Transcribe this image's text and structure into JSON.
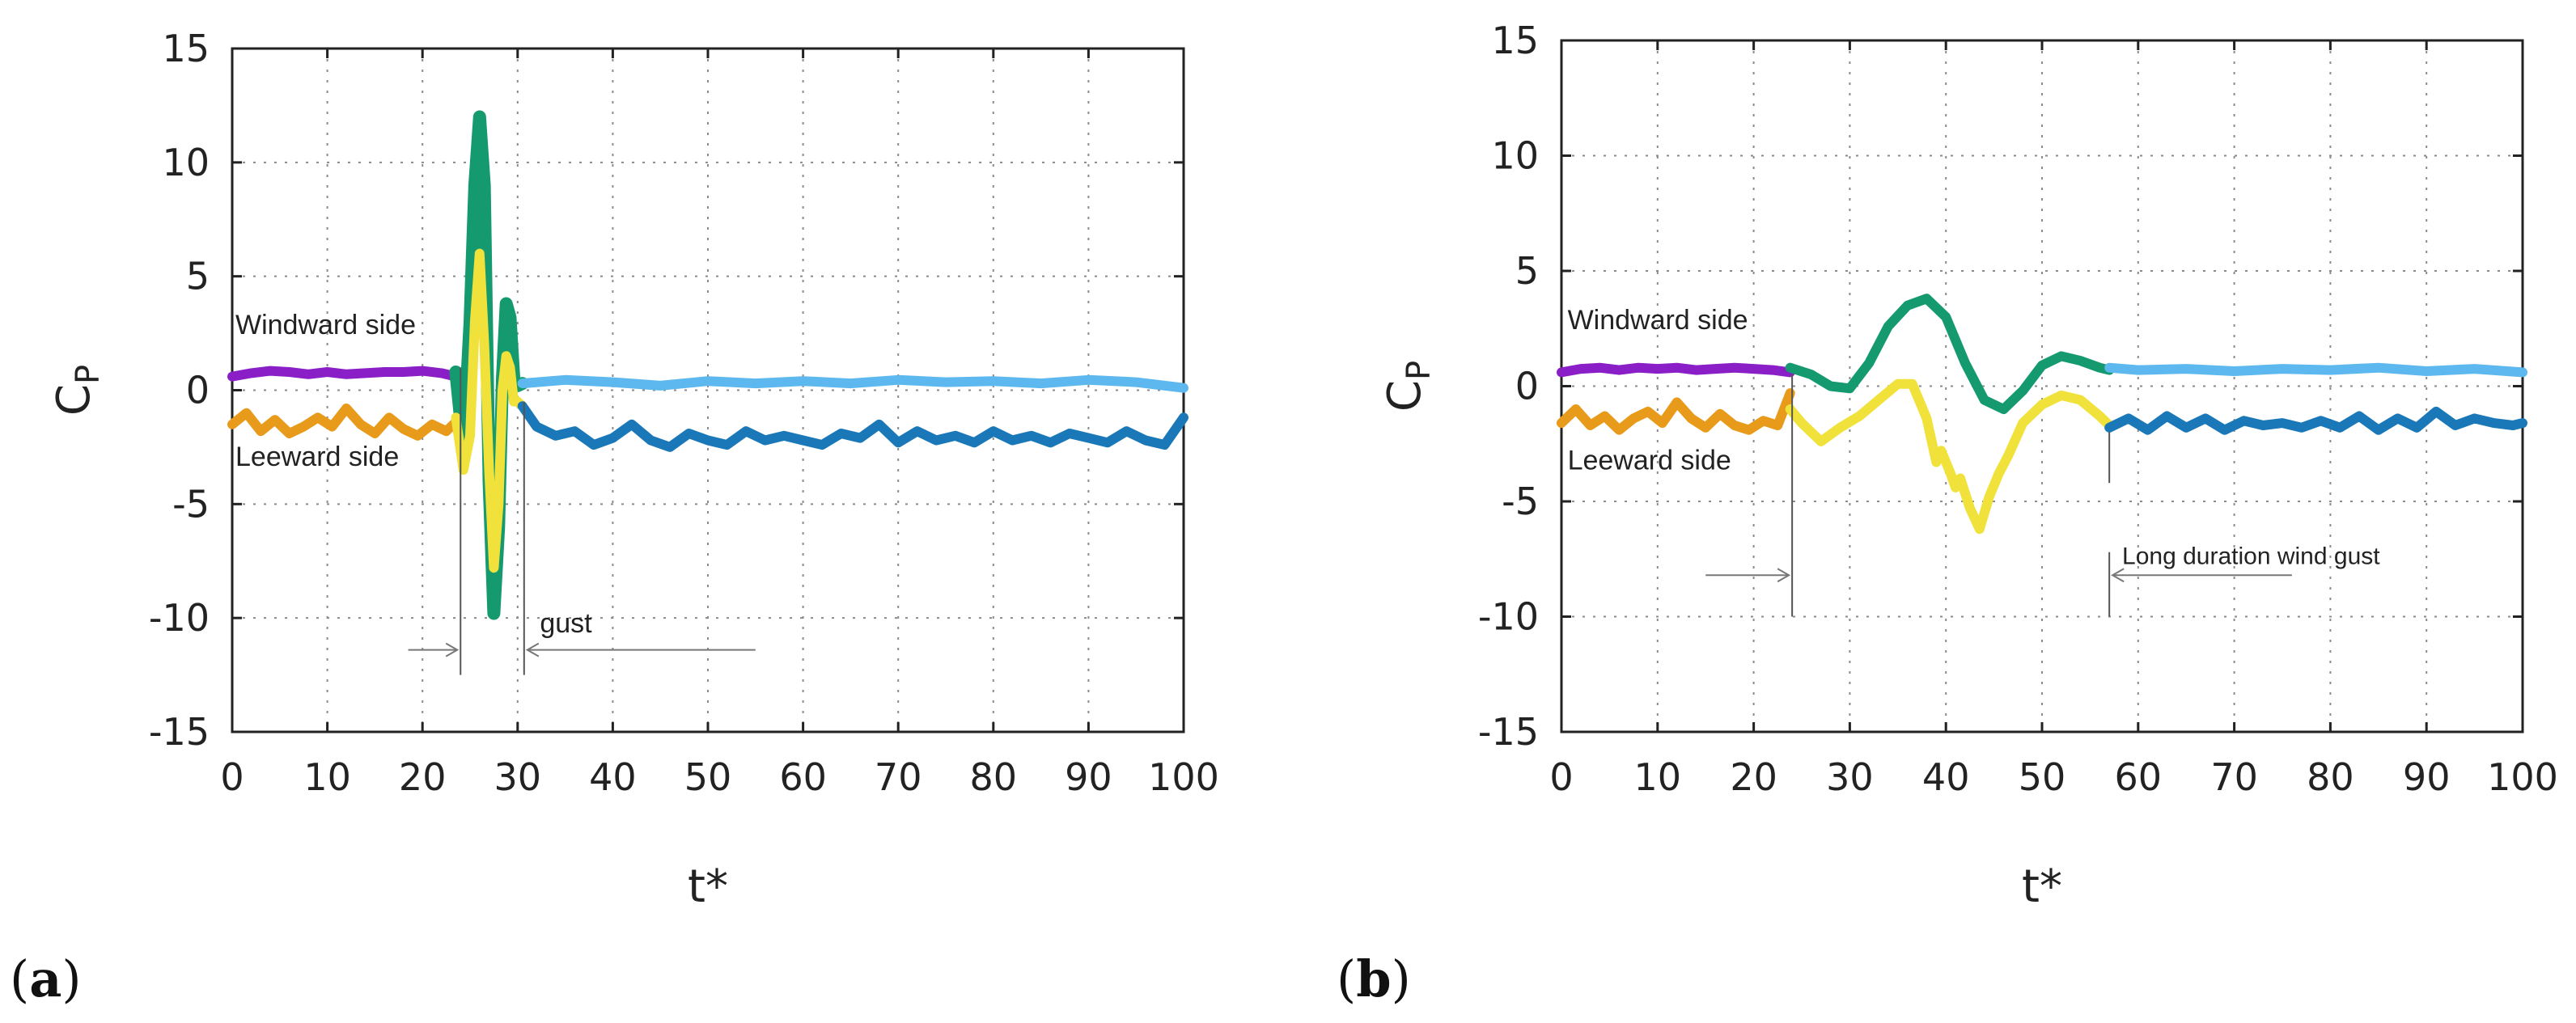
{
  "figure": {
    "panels": [
      "(a)",
      "(b)"
    ]
  },
  "chart_data": [
    {
      "id": "a",
      "type": "line",
      "panel_label": "(a)",
      "xlabel": "t*",
      "ylabel": "C",
      "ylabel_sub": "P",
      "xlim": [
        0,
        100
      ],
      "ylim": [
        -15,
        15
      ],
      "xticks": [
        0,
        10,
        20,
        30,
        40,
        50,
        60,
        70,
        80,
        90,
        100
      ],
      "yticks": [
        -15,
        -10,
        -5,
        0,
        5,
        10,
        15
      ],
      "grid": true,
      "annotations": [
        {
          "name": "windward-label",
          "text": "Windward side",
          "x": 0,
          "y": 2.9
        },
        {
          "name": "leeward-label",
          "text": "Leeward side",
          "x": 0,
          "y": -2.9
        },
        {
          "name": "gust-label",
          "text": "gust",
          "x": 32,
          "y": -10.2
        }
      ],
      "markers": {
        "gust_start": 24,
        "gust_end": 30,
        "vline_y": [
          -12.5,
          1.0
        ],
        "arrow_y": -11.4,
        "left_arrow_from": 18.5,
        "right_arrow_to": 55
      },
      "series": [
        {
          "name": "windward-before",
          "color": "#8a1fc7",
          "width": 12,
          "x": [
            0,
            2,
            4,
            6,
            8,
            10,
            12,
            14,
            16,
            18,
            20,
            22,
            23.5
          ],
          "y": [
            0.6,
            0.75,
            0.85,
            0.8,
            0.7,
            0.8,
            0.7,
            0.75,
            0.8,
            0.8,
            0.85,
            0.75,
            0.6
          ]
        },
        {
          "name": "windward-gust",
          "color": "#159a70",
          "width": 16,
          "x": [
            23.5,
            24.3,
            25,
            25.5,
            26,
            26.5,
            27,
            27.5,
            28,
            28.4,
            28.8,
            29.2,
            29.6,
            30,
            30.5
          ],
          "y": [
            0.8,
            -2.5,
            3,
            9,
            12,
            9,
            -4,
            -9.8,
            -6,
            0.5,
            3.8,
            3.2,
            0.5,
            0.2,
            0.3
          ]
        },
        {
          "name": "windward-after",
          "color": "#5cb8ee",
          "width": 12,
          "x": [
            30.5,
            35,
            40,
            45,
            50,
            55,
            60,
            65,
            70,
            75,
            80,
            85,
            90,
            95,
            100
          ],
          "y": [
            0.3,
            0.45,
            0.35,
            0.2,
            0.4,
            0.3,
            0.4,
            0.3,
            0.45,
            0.35,
            0.4,
            0.3,
            0.45,
            0.35,
            0.1
          ]
        },
        {
          "name": "leeward-before",
          "color": "#e89a1a",
          "width": 12,
          "x": [
            0,
            1.5,
            3,
            4.5,
            6,
            7.5,
            9,
            10.5,
            12,
            13.5,
            15,
            16.5,
            18,
            19.5,
            21,
            22.5,
            23.5
          ],
          "y": [
            -1.5,
            -1.0,
            -1.8,
            -1.3,
            -1.9,
            -1.6,
            -1.2,
            -1.6,
            -0.8,
            -1.5,
            -1.9,
            -1.2,
            -1.7,
            -2.0,
            -1.5,
            -1.8,
            -1.4
          ]
        },
        {
          "name": "leeward-gust",
          "color": "#f0e23a",
          "width": 12,
          "x": [
            23.5,
            24.3,
            25,
            25.5,
            26,
            26.5,
            27,
            27.5,
            28,
            28.4,
            28.8,
            29.2,
            29.6,
            30,
            30.5
          ],
          "y": [
            -1.2,
            -3.5,
            -2,
            3,
            6,
            2,
            -3.5,
            -7.8,
            -5,
            0,
            1.5,
            1.0,
            -0.5,
            -0.5,
            -0.7
          ]
        },
        {
          "name": "leeward-after",
          "color": "#1a78b8",
          "width": 12,
          "x": [
            30.5,
            32,
            34,
            36,
            38,
            40,
            42,
            44,
            46,
            48,
            50,
            52,
            54,
            56,
            58,
            60,
            62,
            64,
            66,
            68,
            70,
            72,
            74,
            76,
            78,
            80,
            82,
            84,
            86,
            88,
            90,
            92,
            94,
            96,
            98,
            100
          ],
          "y": [
            -0.7,
            -1.6,
            -2.0,
            -1.8,
            -2.4,
            -2.1,
            -1.5,
            -2.2,
            -2.5,
            -1.9,
            -2.2,
            -2.4,
            -1.8,
            -2.2,
            -2.0,
            -2.2,
            -2.4,
            -1.9,
            -2.1,
            -1.5,
            -2.3,
            -1.8,
            -2.2,
            -2.0,
            -2.3,
            -1.8,
            -2.2,
            -2.0,
            -2.3,
            -1.9,
            -2.1,
            -2.3,
            -1.8,
            -2.2,
            -2.4,
            -1.2
          ]
        }
      ]
    },
    {
      "id": "b",
      "type": "line",
      "panel_label": "(b)",
      "xlabel": "t*",
      "ylabel": "C",
      "ylabel_sub": "P",
      "xlim": [
        0,
        100
      ],
      "ylim": [
        -15,
        15
      ],
      "xticks": [
        0,
        10,
        20,
        30,
        40,
        50,
        60,
        70,
        80,
        90,
        100
      ],
      "yticks": [
        -15,
        -10,
        -5,
        0,
        5,
        10,
        15
      ],
      "grid": true,
      "annotations": [
        {
          "name": "windward-label",
          "text": "Windward side",
          "x": 0.3,
          "y": 2.9
        },
        {
          "name": "leeward-label",
          "text": "Leeward side",
          "x": 0.3,
          "y": -3.2
        },
        {
          "name": "gust-label",
          "text": "Long duration wind gust",
          "x": 58,
          "y": -7.3
        }
      ],
      "markers": {
        "gust_start": 24,
        "gust_end": 57,
        "vline_start_y": [
          -10,
          0.5
        ],
        "vline_end_y": [
          -10,
          -4.2
        ],
        "right_vline_extra": [
          -4.2,
          -2.0
        ],
        "arrow_y": -8.2,
        "left_arrow_from": 15,
        "right_arrow_to": 76
      },
      "series": [
        {
          "name": "windward-before",
          "color": "#8a1fc7",
          "width": 12,
          "x": [
            0,
            2,
            4,
            6,
            8,
            10,
            12,
            14,
            16,
            18,
            20,
            22,
            23.8
          ],
          "y": [
            0.6,
            0.75,
            0.8,
            0.7,
            0.8,
            0.75,
            0.8,
            0.7,
            0.75,
            0.8,
            0.75,
            0.7,
            0.6
          ]
        },
        {
          "name": "windward-gust",
          "color": "#159a70",
          "width": 12,
          "x": [
            23.8,
            26,
            28,
            30,
            32,
            34,
            36,
            38,
            40,
            42,
            44,
            46,
            48,
            50,
            52,
            54,
            56,
            57
          ],
          "y": [
            0.8,
            0.5,
            0.0,
            -0.1,
            1.0,
            2.6,
            3.5,
            3.8,
            3.0,
            1.0,
            -0.6,
            -1.0,
            -0.2,
            0.9,
            1.3,
            1.1,
            0.8,
            0.7
          ]
        },
        {
          "name": "windward-after",
          "color": "#5cb8ee",
          "width": 12,
          "x": [
            57,
            60,
            65,
            70,
            75,
            80,
            85,
            90,
            95,
            100
          ],
          "y": [
            0.8,
            0.7,
            0.75,
            0.65,
            0.75,
            0.7,
            0.8,
            0.65,
            0.75,
            0.6
          ]
        },
        {
          "name": "leeward-before",
          "color": "#e89a1a",
          "width": 12,
          "x": [
            0,
            1.5,
            3,
            4.5,
            6,
            7.5,
            9,
            10.5,
            12,
            13.5,
            15,
            16.5,
            18,
            19.5,
            21,
            22.5,
            23.8
          ],
          "y": [
            -1.6,
            -1.0,
            -1.7,
            -1.3,
            -1.9,
            -1.4,
            -1.1,
            -1.6,
            -0.7,
            -1.4,
            -1.8,
            -1.2,
            -1.7,
            -1.9,
            -1.5,
            -1.7,
            -0.3
          ]
        },
        {
          "name": "leeward-gust",
          "color": "#f0e23a",
          "width": 12,
          "x": [
            23.8,
            25,
            27,
            29,
            31,
            33,
            35,
            36.5,
            38,
            39,
            39.5,
            40.5,
            41,
            41.5,
            42.5,
            43.5,
            44.5,
            45.5,
            46.5,
            48,
            50,
            52,
            54,
            56,
            57
          ],
          "y": [
            -1.0,
            -1.6,
            -2.4,
            -1.8,
            -1.3,
            -0.6,
            0.1,
            0.1,
            -1.4,
            -3.3,
            -2.8,
            -3.8,
            -4.4,
            -4.0,
            -5.3,
            -6.2,
            -4.8,
            -3.8,
            -3.0,
            -1.6,
            -0.8,
            -0.4,
            -0.6,
            -1.3,
            -1.7
          ]
        },
        {
          "name": "leeward-after",
          "color": "#1a78b8",
          "width": 12,
          "x": [
            57,
            59,
            61,
            63,
            65,
            67,
            69,
            71,
            73,
            75,
            77,
            79,
            81,
            83,
            85,
            87,
            89,
            91,
            93,
            95,
            97,
            99,
            100
          ],
          "y": [
            -1.8,
            -1.4,
            -1.9,
            -1.3,
            -1.8,
            -1.4,
            -1.9,
            -1.5,
            -1.7,
            -1.6,
            -1.8,
            -1.5,
            -1.8,
            -1.3,
            -1.9,
            -1.4,
            -1.8,
            -1.1,
            -1.7,
            -1.4,
            -1.6,
            -1.7,
            -1.6
          ]
        }
      ]
    }
  ]
}
